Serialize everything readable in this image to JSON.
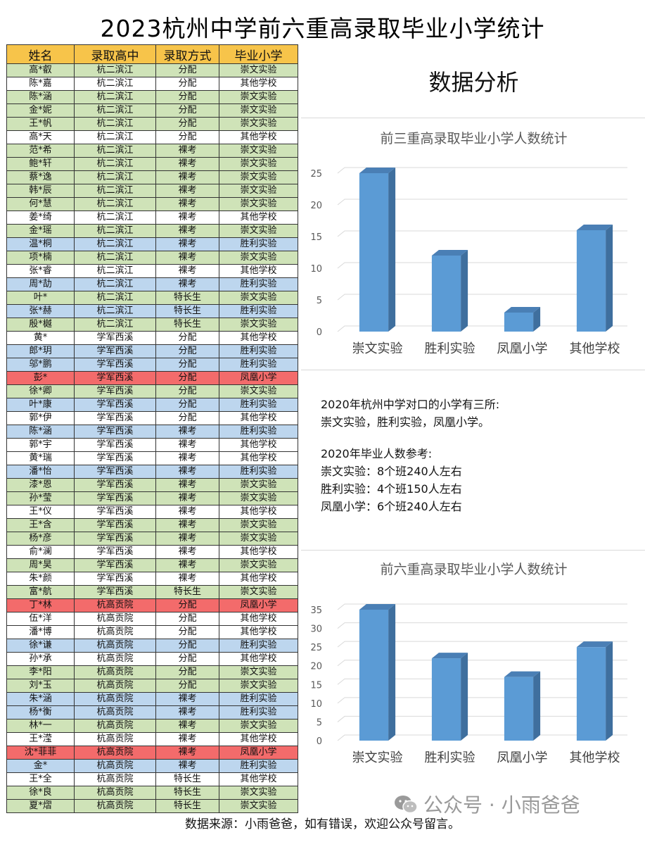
{
  "title": "2023杭州中学前六重高录取毕业小学统计",
  "table": {
    "headers": [
      "姓名",
      "录取高中",
      "录取方式",
      "毕业小学"
    ],
    "rows": [
      [
        "高*叡",
        "杭二滨江",
        "分配",
        "崇文实验"
      ],
      [
        "陈*嘉",
        "杭二滨江",
        "分配",
        "其他学校"
      ],
      [
        "陈*涵",
        "杭二滨江",
        "分配",
        "崇文实验"
      ],
      [
        "金*妮",
        "杭二滨江",
        "分配",
        "崇文实验"
      ],
      [
        "王*帆",
        "杭二滨江",
        "分配",
        "崇文实验"
      ],
      [
        "高*天",
        "杭二滨江",
        "分配",
        "其他学校"
      ],
      [
        "范*希",
        "杭二滨江",
        "裸考",
        "崇文实验"
      ],
      [
        "鲍*轩",
        "杭二滨江",
        "裸考",
        "崇文实验"
      ],
      [
        "蔡*逸",
        "杭二滨江",
        "裸考",
        "崇文实验"
      ],
      [
        "韩*辰",
        "杭二滨江",
        "裸考",
        "崇文实验"
      ],
      [
        "何*慧",
        "杭二滨江",
        "裸考",
        "崇文实验"
      ],
      [
        "姜*绮",
        "杭二滨江",
        "裸考",
        "其他学校"
      ],
      [
        "金*瑶",
        "杭二滨江",
        "裸考",
        "崇文实验"
      ],
      [
        "温*桐",
        "杭二滨江",
        "裸考",
        "胜利实验"
      ],
      [
        "项*楠",
        "杭二滨江",
        "裸考",
        "崇文实验"
      ],
      [
        "张*睿",
        "杭二滨江",
        "裸考",
        "其他学校"
      ],
      [
        "周*劼",
        "杭二滨江",
        "裸考",
        "胜利实验"
      ],
      [
        "叶*",
        "杭二滨江",
        "特长生",
        "崇文实验"
      ],
      [
        "张*赫",
        "杭二滨江",
        "特长生",
        "胜利实验"
      ],
      [
        "殷*樾",
        "杭二滨江",
        "特长生",
        "崇文实验"
      ],
      [
        "黄*",
        "学军西溪",
        "分配",
        "其他学校"
      ],
      [
        "郎*玥",
        "学军西溪",
        "分配",
        "胜利实验"
      ],
      [
        "邬*鹏",
        "学军西溪",
        "分配",
        "胜利实验"
      ],
      [
        "彭*",
        "学军西溪",
        "分配",
        "凤凰小学"
      ],
      [
        "徐*卿",
        "学军西溪",
        "分配",
        "崇文实验"
      ],
      [
        "叶*康",
        "学军西溪",
        "分配",
        "胜利实验"
      ],
      [
        "郭*伊",
        "学军西溪",
        "分配",
        "其他学校"
      ],
      [
        "陈*涵",
        "学军西溪",
        "裸考",
        "胜利实验"
      ],
      [
        "郭*宇",
        "学军西溪",
        "裸考",
        "其他学校"
      ],
      [
        "黄*瑞",
        "学军西溪",
        "裸考",
        "其他学校"
      ],
      [
        "潘*怡",
        "学军西溪",
        "裸考",
        "胜利实验"
      ],
      [
        "漆*恩",
        "学军西溪",
        "裸考",
        "崇文实验"
      ],
      [
        "孙*莹",
        "学军西溪",
        "裸考",
        "崇文实验"
      ],
      [
        "王*仪",
        "学军西溪",
        "裸考",
        "其他学校"
      ],
      [
        "王*含",
        "学军西溪",
        "裸考",
        "崇文实验"
      ],
      [
        "杨*彦",
        "学军西溪",
        "裸考",
        "崇文实验"
      ],
      [
        "俞*澜",
        "学军西溪",
        "裸考",
        "其他学校"
      ],
      [
        "周*昊",
        "学军西溪",
        "裸考",
        "崇文实验"
      ],
      [
        "朱*颜",
        "学军西溪",
        "裸考",
        "其他学校"
      ],
      [
        "富*航",
        "学军西溪",
        "特长生",
        "崇文实验"
      ],
      [
        "丁*林",
        "杭高贡院",
        "分配",
        "凤凰小学"
      ],
      [
        "伍*洋",
        "杭高贡院",
        "分配",
        "其他学校"
      ],
      [
        "潘*博",
        "杭高贡院",
        "分配",
        "其他学校"
      ],
      [
        "徐*谦",
        "杭高贡院",
        "分配",
        "胜利实验"
      ],
      [
        "孙*承",
        "杭高贡院",
        "分配",
        "其他学校"
      ],
      [
        "李*阳",
        "杭高贡院",
        "分配",
        "崇文实验"
      ],
      [
        "刘*玉",
        "杭高贡院",
        "分配",
        "崇文实验"
      ],
      [
        "朱*涵",
        "杭高贡院",
        "裸考",
        "胜利实验"
      ],
      [
        "杨*衡",
        "杭高贡院",
        "裸考",
        "胜利实验"
      ],
      [
        "林*一",
        "杭高贡院",
        "裸考",
        "崇文实验"
      ],
      [
        "王*滢",
        "杭高贡院",
        "裸考",
        "其他学校"
      ],
      [
        "沈*菲菲",
        "杭高贡院",
        "裸考",
        "凤凰小学"
      ],
      [
        "金*",
        "杭高贡院",
        "裸考",
        "胜利实验"
      ],
      [
        "王*全",
        "杭高贡院",
        "特长生",
        "其他学校"
      ],
      [
        "徐*良",
        "杭高贡院",
        "特长生",
        "崇文实验"
      ],
      [
        "夏*熠",
        "杭高贡院",
        "特长生",
        "崇文实验"
      ]
    ]
  },
  "row_colors": {
    "崇文实验": "#cfe3b8",
    "其他学校": "#ffffff",
    "胜利实验": "#bdd6ee",
    "凤凰小学": "#f36b6b"
  },
  "analysis": {
    "heading": "数据分析",
    "info_lines_1": [
      "2020年杭州中学对口的小学有三所:",
      "崇文实验，胜利实验，凤凰小学。"
    ],
    "info_lines_2": [
      "2020年毕业人数参考:",
      "崇文实验：8个班240人左右",
      "胜利实验：4个班150人左右",
      "凤凰小学：6个班240人左右"
    ]
  },
  "chart_data": [
    {
      "type": "bar",
      "title": "前三重高录取毕业小学人数统计",
      "categories": [
        "崇文实验",
        "胜利实验",
        "凤凰小学",
        "其他学校"
      ],
      "values": [
        25,
        12,
        3,
        16
      ],
      "ylim": [
        0,
        25
      ],
      "yticks": [
        0,
        5,
        10,
        15,
        20,
        25
      ],
      "grid": true,
      "color": "#5b9bd5"
    },
    {
      "type": "bar",
      "title": "前六重高录取毕业小学人数统计",
      "categories": [
        "崇文实验",
        "胜利实验",
        "凤凰小学",
        "其他学校"
      ],
      "values": [
        35,
        22,
        17,
        25
      ],
      "ylim": [
        0,
        35
      ],
      "yticks": [
        0,
        5,
        10,
        15,
        20,
        25,
        30,
        35
      ],
      "grid": true,
      "color": "#5b9bd5"
    }
  ],
  "footer": "数据来源：小雨爸爸，如有错误，欢迎公众号留言。",
  "watermark": {
    "text": "公众号 · 小雨爸爸",
    "icon": "wechat-icon"
  }
}
